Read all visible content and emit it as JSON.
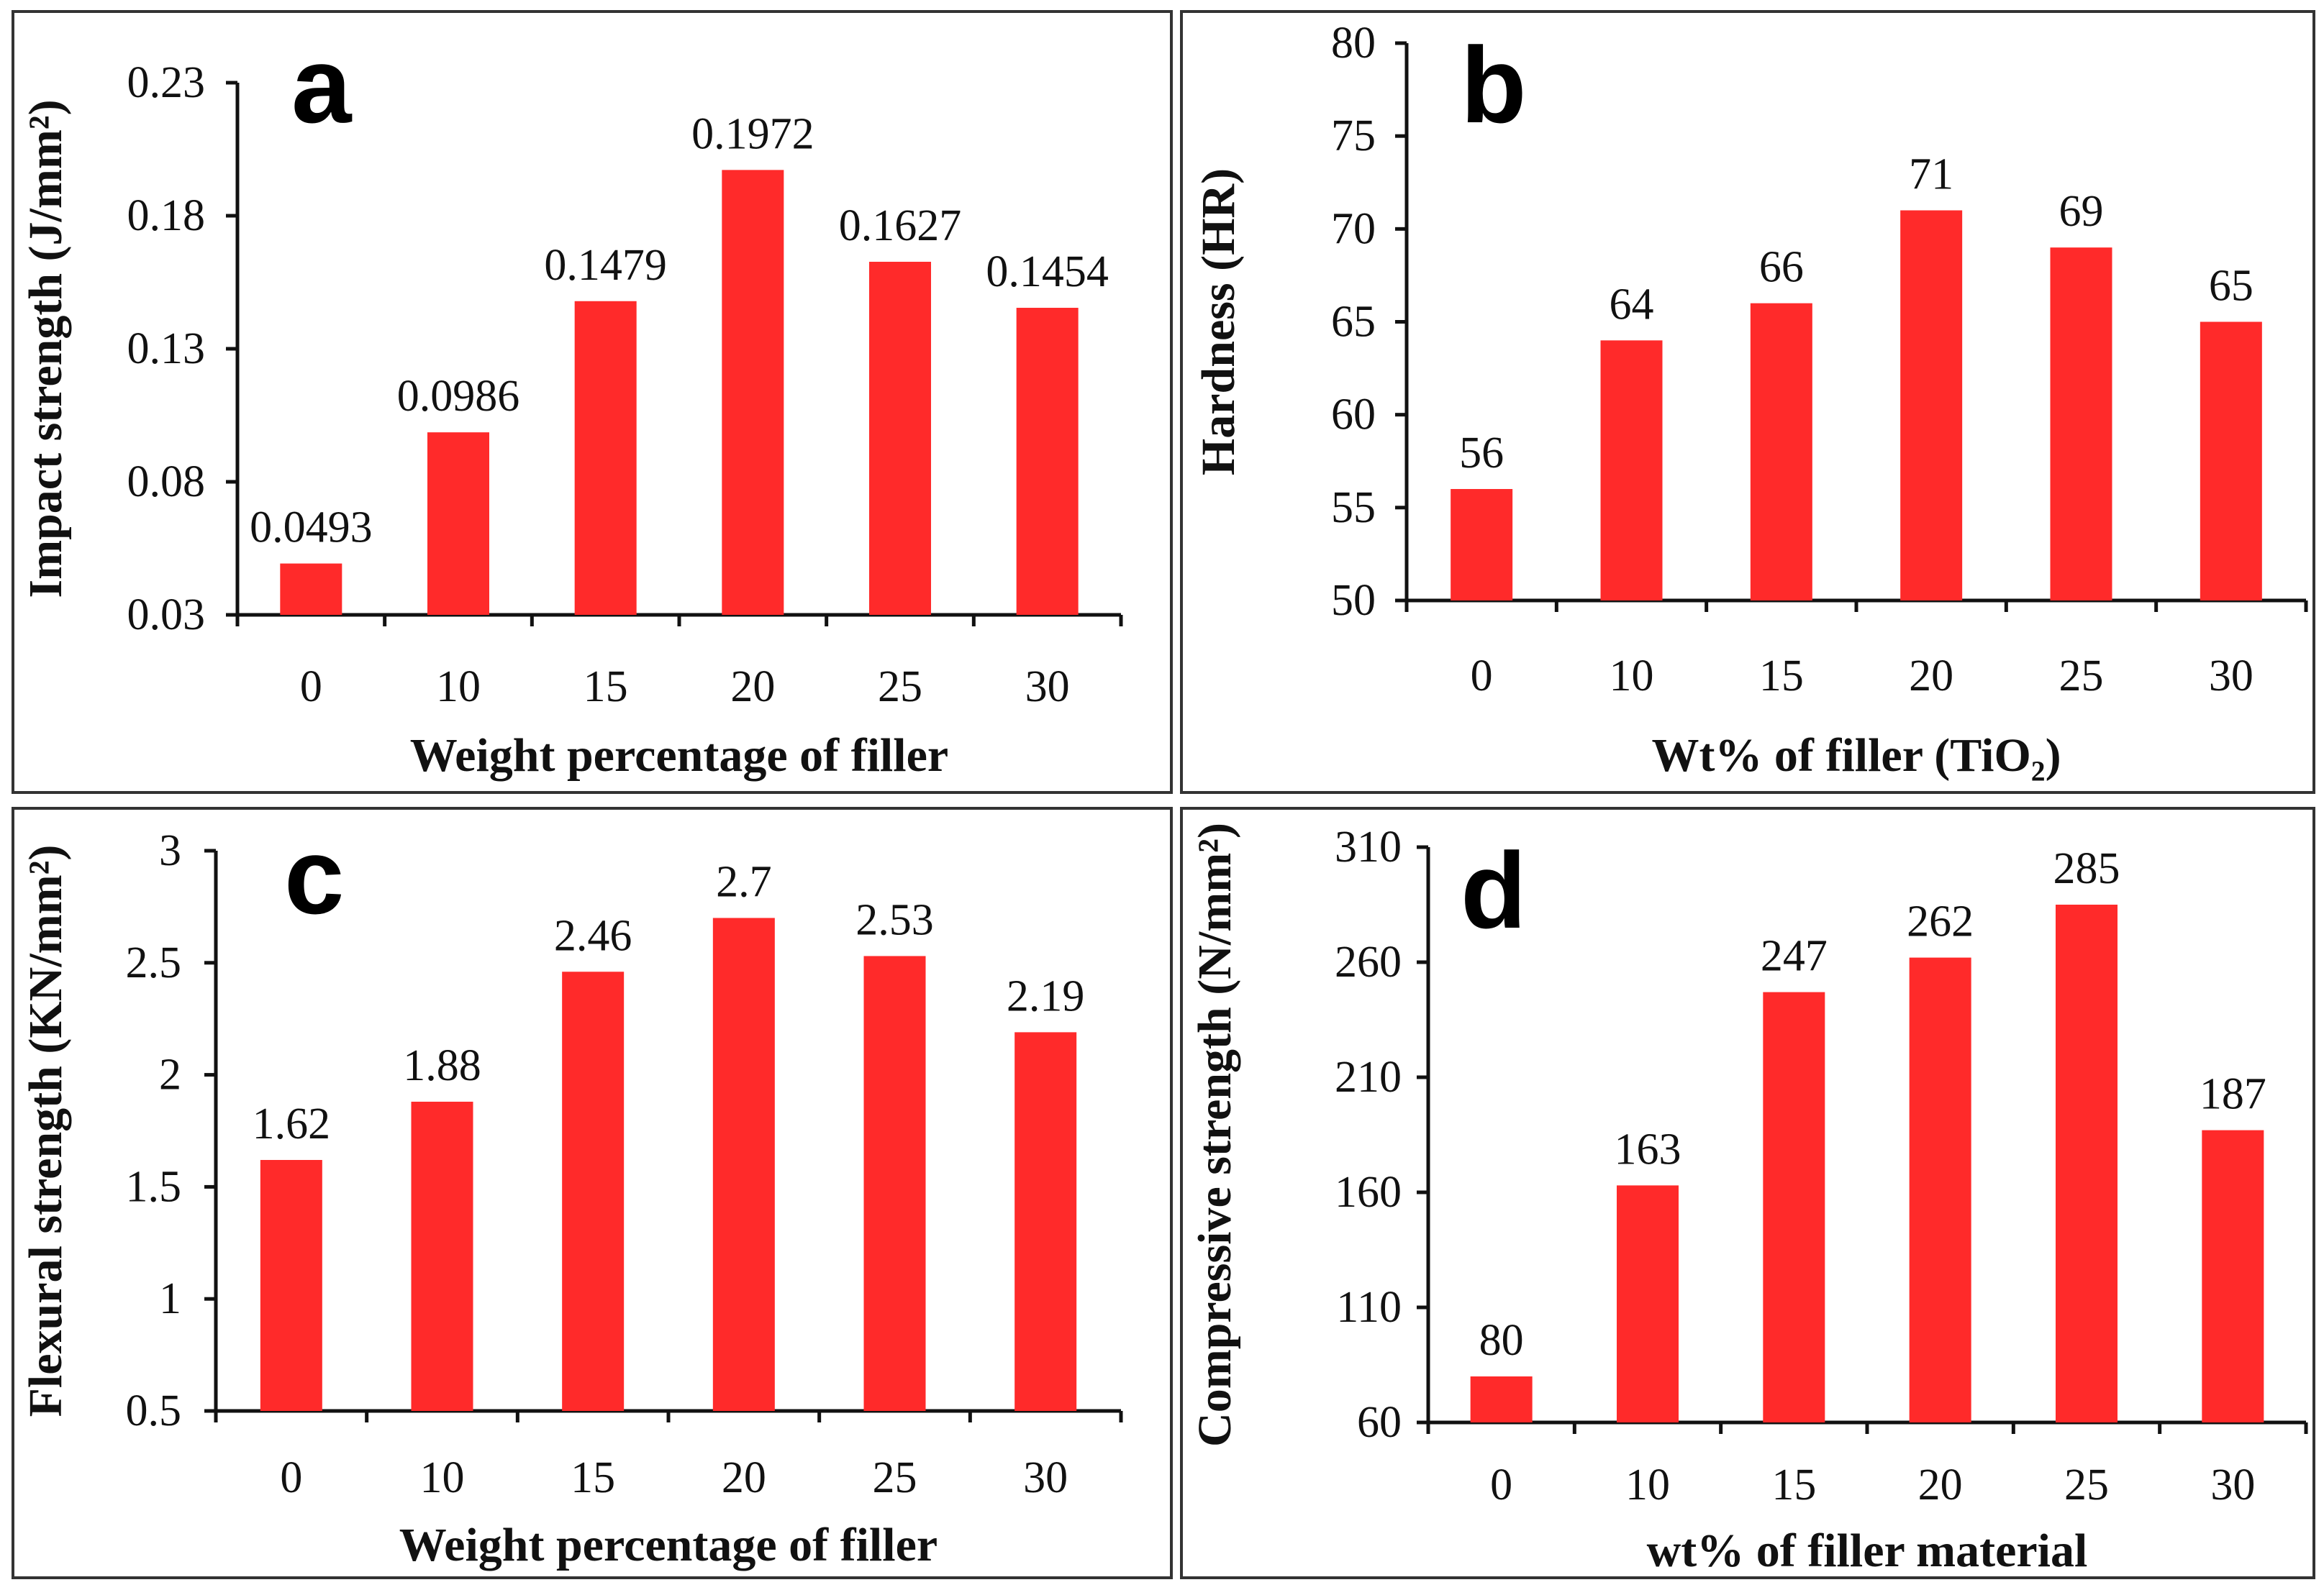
{
  "colors": {
    "bar": "#ff2a2a",
    "axis": "#111111",
    "border": "#333333"
  },
  "chart_data": [
    {
      "panel": "a",
      "type": "bar",
      "categories": [
        "0",
        "10",
        "15",
        "20",
        "25",
        "30"
      ],
      "values": [
        0.0493,
        0.0986,
        0.1479,
        0.1972,
        0.1627,
        0.1454
      ],
      "value_labels": [
        "0.0493",
        "0.0986",
        "0.1479",
        "0.1972",
        "0.1627",
        "0.1454"
      ],
      "ylim": [
        0.03,
        0.23
      ],
      "yticks": [
        0.03,
        0.08,
        0.13,
        0.18,
        0.23
      ],
      "ytick_labels": [
        "0.03",
        "0.08",
        "0.13",
        "0.18",
        "0.23"
      ],
      "xlabel": "Weight percentage of filler",
      "ylabel": "Impact strength (J/mm²)",
      "title": ""
    },
    {
      "panel": "b",
      "type": "bar",
      "categories": [
        "0",
        "10",
        "15",
        "20",
        "25",
        "30"
      ],
      "values": [
        56,
        64,
        66,
        71,
        69,
        65
      ],
      "value_labels": [
        "56",
        "64",
        "66",
        "71",
        "69",
        "65"
      ],
      "ylim": [
        50,
        80
      ],
      "yticks": [
        50,
        55,
        60,
        65,
        70,
        75,
        80
      ],
      "ytick_labels": [
        "50",
        "55",
        "60",
        "65",
        "70",
        "75",
        "80"
      ],
      "xlabel": "Wt% of filler (TiO₂)",
      "ylabel": "Hardness (HR)",
      "title": ""
    },
    {
      "panel": "c",
      "type": "bar",
      "categories": [
        "0",
        "10",
        "15",
        "20",
        "25",
        "30"
      ],
      "values": [
        1.62,
        1.88,
        2.46,
        2.7,
        2.53,
        2.19
      ],
      "value_labels": [
        "1.62",
        "1.88",
        "2.46",
        "2.7",
        "2.53",
        "2.19"
      ],
      "ylim": [
        0.5,
        3
      ],
      "yticks": [
        0.5,
        1,
        1.5,
        2,
        2.5,
        3
      ],
      "ytick_labels": [
        "0.5",
        "1",
        "1.5",
        "2",
        "2.5",
        "3"
      ],
      "xlabel": "Weight percentage of filler",
      "ylabel": "Flexural strength (KN/mm²)",
      "title": ""
    },
    {
      "panel": "d",
      "type": "bar",
      "categories": [
        "0",
        "10",
        "15",
        "20",
        "25",
        "30"
      ],
      "values": [
        80,
        163,
        247,
        262,
        285,
        187
      ],
      "value_labels": [
        "80",
        "163",
        "247",
        "262",
        "285",
        "187"
      ],
      "ylim": [
        60,
        310
      ],
      "yticks": [
        60,
        110,
        160,
        210,
        260,
        310
      ],
      "ytick_labels": [
        "60",
        "110",
        "160",
        "210",
        "260",
        "310"
      ],
      "xlabel": "wt% of filler material",
      "ylabel": "Compressive strength (N/mm²)",
      "title": ""
    }
  ]
}
